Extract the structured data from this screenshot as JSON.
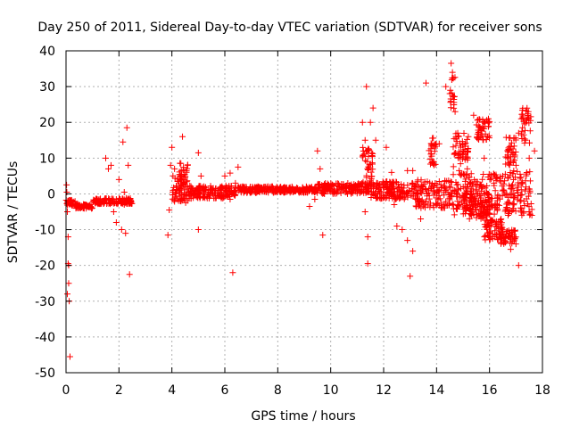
{
  "chart_data": {
    "type": "scatter",
    "title": "Day 250 of 2011, Sidereal Day-to-day VTEC variation (SDTVAR) for receiver sons",
    "xlabel": "GPS time / hours",
    "ylabel": "SDTVAR / TECUs",
    "xlim": [
      0,
      18
    ],
    "ylim": [
      -50,
      40
    ],
    "xticks": [
      0,
      2,
      4,
      6,
      8,
      10,
      12,
      14,
      16,
      18
    ],
    "yticks": [
      -50,
      -40,
      -30,
      -20,
      -10,
      0,
      10,
      20,
      30,
      40
    ],
    "xtick_labels": [
      "0",
      "2",
      "4",
      "6",
      "8",
      "10",
      "12",
      "14",
      "16",
      "18"
    ],
    "ytick_labels": [
      "-50",
      "-40",
      "-30",
      "-20",
      "-10",
      "0",
      "10",
      "20",
      "30",
      "40"
    ],
    "grid": true,
    "marker": "+",
    "series": [
      {
        "name": "SDTVAR",
        "color": "#ff0000",
        "bands": [
          {
            "x": [
              0.0,
              0.35
            ],
            "y_center": -2.5,
            "y_spread": 0.8
          },
          {
            "x": [
              0.35,
              1.0
            ],
            "y_center": -3.5,
            "y_spread": 0.6
          },
          {
            "x": [
              1.0,
              2.5
            ],
            "y_center": -2.0,
            "y_spread": 0.8
          },
          {
            "x": [
              4.0,
              4.6
            ],
            "y_center": 1.5,
            "y_spread": 4.0
          },
          {
            "x": [
              4.6,
              6.5
            ],
            "y_center": 0.5,
            "y_spread": 1.8
          },
          {
            "x": [
              6.5,
              9.5
            ],
            "y_center": 1.2,
            "y_spread": 0.9
          },
          {
            "x": [
              9.5,
              11.5
            ],
            "y_center": 1.5,
            "y_spread": 1.5
          },
          {
            "x": [
              11.5,
              13.2
            ],
            "y_center": 1.0,
            "y_spread": 2.5
          },
          {
            "x": [
              13.2,
              14.6
            ],
            "y_center": 0.0,
            "y_spread": 4.0
          },
          {
            "x": [
              14.6,
              16.5
            ],
            "y_center": 0.0,
            "y_spread": 6.0
          },
          {
            "x": [
              16.5,
              17.6
            ],
            "y_center": 0.0,
            "y_spread": 6.5
          },
          {
            "x": [
              4.25,
              4.6
            ],
            "y_center": 4.0,
            "y_spread": 5.0
          },
          {
            "x": [
              14.5,
              14.7
            ],
            "y_center": 28.0,
            "y_spread": 5.0
          },
          {
            "x": [
              14.6,
              15.2
            ],
            "y_center": 11.0,
            "y_spread": 6.0
          },
          {
            "x": [
              15.0,
              16.0
            ],
            "y_center": -3.0,
            "y_spread": 4.0
          },
          {
            "x": [
              15.5,
              16.0
            ],
            "y_center": 18.0,
            "y_spread": 3.0
          },
          {
            "x": [
              15.8,
              16.5
            ],
            "y_center": -10.0,
            "y_spread": 3.0
          },
          {
            "x": [
              16.4,
              17.0
            ],
            "y_center": -12.0,
            "y_spread": 2.0
          },
          {
            "x": [
              17.2,
              17.6
            ],
            "y_center": 19.0,
            "y_spread": 5.0
          },
          {
            "x": [
              16.6,
              17.0
            ],
            "y_center": 12.0,
            "y_spread": 4.0
          },
          {
            "x": [
              11.2,
              11.6
            ],
            "y_center": 8.0,
            "y_spread": 5.0
          },
          {
            "x": [
              13.7,
              14.0
            ],
            "y_center": 12.0,
            "y_spread": 4.0
          }
        ],
        "points": [
          [
            0.02,
            2.5
          ],
          [
            0.05,
            -5.0
          ],
          [
            0.08,
            -12.0
          ],
          [
            0.1,
            -20.0
          ],
          [
            0.1,
            -25.0
          ],
          [
            0.12,
            -30.0
          ],
          [
            0.15,
            -45.5
          ],
          [
            0.08,
            -19.5
          ],
          [
            0.05,
            -28.0
          ],
          [
            0.03,
            0.5
          ],
          [
            0.2,
            -2.0
          ],
          [
            1.5,
            10.0
          ],
          [
            1.6,
            7.0
          ],
          [
            1.7,
            8.0
          ],
          [
            1.8,
            -5.0
          ],
          [
            1.9,
            -8.0
          ],
          [
            2.0,
            4.0
          ],
          [
            2.1,
            -10.0
          ],
          [
            2.15,
            14.5
          ],
          [
            2.2,
            -3.0
          ],
          [
            2.25,
            -11.0
          ],
          [
            2.3,
            18.5
          ],
          [
            2.35,
            8.0
          ],
          [
            2.4,
            -22.5
          ],
          [
            2.2,
            0.5
          ],
          [
            3.85,
            -11.5
          ],
          [
            3.9,
            -4.5
          ],
          [
            3.95,
            8.0
          ],
          [
            4.0,
            13.0
          ],
          [
            4.1,
            7.0
          ],
          [
            4.4,
            16.0
          ],
          [
            5.0,
            11.5
          ],
          [
            5.0,
            -10.0
          ],
          [
            5.1,
            5.0
          ],
          [
            6.0,
            5.0
          ],
          [
            6.2,
            -1.5
          ],
          [
            6.3,
            -22.0
          ],
          [
            6.5,
            7.5
          ],
          [
            6.2,
            5.8
          ],
          [
            6.4,
            3.0
          ],
          [
            9.5,
            12.0
          ],
          [
            9.6,
            7.0
          ],
          [
            9.7,
            -11.5
          ],
          [
            9.2,
            -3.5
          ],
          [
            9.4,
            -1.5
          ],
          [
            11.3,
            15.0
          ],
          [
            11.35,
            30.0
          ],
          [
            11.4,
            -19.5
          ],
          [
            11.4,
            -12.0
          ],
          [
            11.5,
            20.0
          ],
          [
            11.6,
            24.0
          ],
          [
            11.7,
            15.0
          ],
          [
            11.2,
            20.0
          ],
          [
            11.3,
            -5.0
          ],
          [
            11.4,
            12.0
          ],
          [
            12.1,
            13.0
          ],
          [
            12.3,
            6.0
          ],
          [
            12.4,
            -3.0
          ],
          [
            12.5,
            -9.0
          ],
          [
            12.7,
            -10.0
          ],
          [
            12.9,
            6.5
          ],
          [
            13.0,
            -23.0
          ],
          [
            13.1,
            -16.0
          ],
          [
            13.1,
            6.5
          ],
          [
            12.9,
            -13.0
          ],
          [
            13.4,
            -7.0
          ],
          [
            13.6,
            31.0
          ],
          [
            14.1,
            14.0
          ],
          [
            14.35,
            30.0
          ],
          [
            14.55,
            36.5
          ],
          [
            14.6,
            34.0
          ],
          [
            14.7,
            23.0
          ],
          [
            14.8,
            17.0
          ],
          [
            15.2,
            16.0
          ],
          [
            15.4,
            22.0
          ],
          [
            15.5,
            -4.5
          ],
          [
            15.8,
            10.0
          ],
          [
            16.0,
            -11.0
          ],
          [
            16.5,
            5.0
          ],
          [
            16.7,
            -6.0
          ],
          [
            16.8,
            -15.5
          ],
          [
            16.9,
            9.0
          ],
          [
            17.0,
            8.0
          ],
          [
            17.1,
            -20.0
          ],
          [
            17.2,
            21.0
          ],
          [
            17.5,
            10.0
          ],
          [
            17.6,
            -6.0
          ],
          [
            17.7,
            12.0
          ],
          [
            17.5,
            -5.0
          ],
          [
            17.1,
            17.0
          ],
          [
            16.9,
            -4.0
          ]
        ]
      }
    ]
  }
}
